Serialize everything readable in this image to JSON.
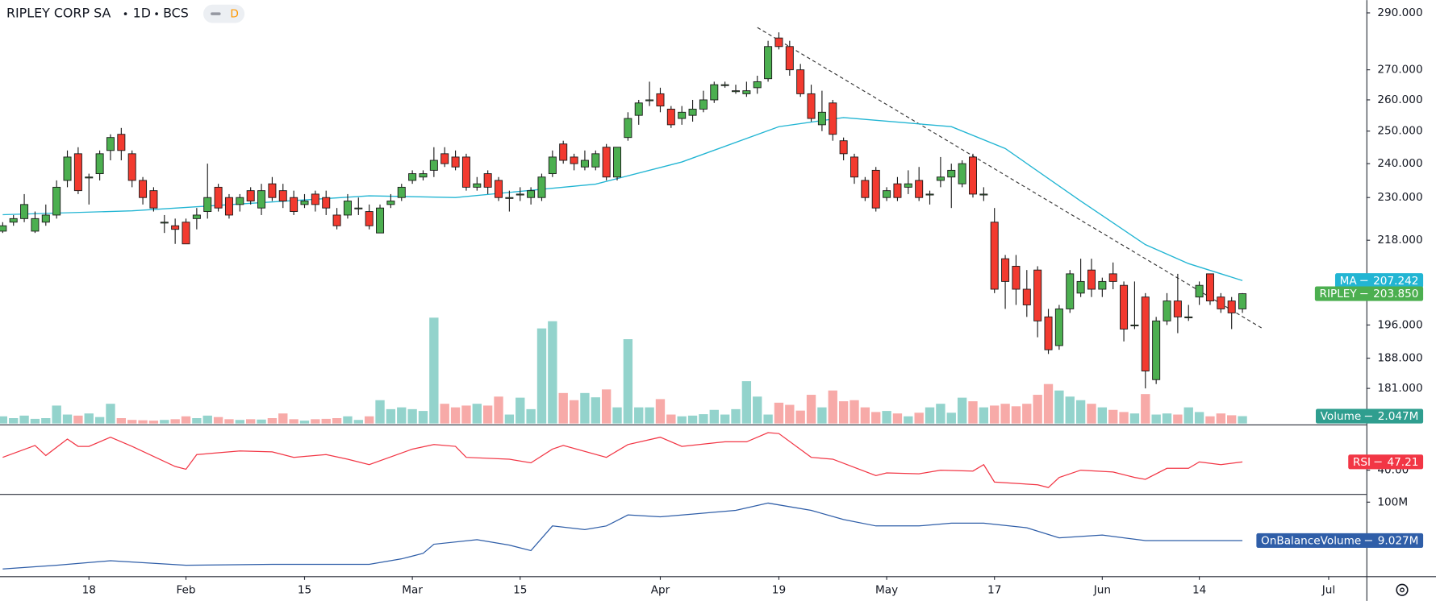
{
  "header": {
    "symbol": "RIPLEY CORP SA",
    "interval": "1D",
    "exchange": "BCS",
    "badge": "D"
  },
  "chart_data": [
    {
      "type": "candlestick",
      "name": "RIPLEY",
      "up_color": "#4caf50",
      "down_color": "#f23a2f",
      "log_scale": true,
      "xlim": [
        -0.25,
        126.5
      ],
      "ylim": [
        173.2,
        294.7
      ],
      "yticks": [
        {
          "value": 290,
          "label": "290.000"
        },
        {
          "value": 270,
          "label": "270.000"
        },
        {
          "value": 260,
          "label": "260.000"
        },
        {
          "value": 250,
          "label": "250.000"
        },
        {
          "value": 240,
          "label": "240.000"
        },
        {
          "value": 230,
          "label": "230.000"
        },
        {
          "value": 218,
          "label": "218.000"
        },
        {
          "value": 196,
          "label": "196.000"
        },
        {
          "value": 188,
          "label": "188.000"
        },
        {
          "value": 181,
          "label": "181.000"
        }
      ],
      "xticks": [
        {
          "value": 8,
          "label": "18"
        },
        {
          "value": 17,
          "label": "Feb"
        },
        {
          "value": 28,
          "label": "15"
        },
        {
          "value": 38,
          "label": "Mar"
        },
        {
          "value": 48,
          "label": "15"
        },
        {
          "value": 61,
          "label": "Apr"
        },
        {
          "value": 72,
          "label": "19"
        },
        {
          "value": 82,
          "label": "May"
        },
        {
          "value": 92,
          "label": "17"
        },
        {
          "value": 102,
          "label": "Jun"
        },
        {
          "value": 111,
          "label": "14"
        },
        {
          "value": 123,
          "label": "Jul"
        }
      ],
      "last_price": {
        "value": 203.85,
        "label": "203.850",
        "color": "#4caf50"
      },
      "ohlc": [
        [
          220.5,
          223,
          220,
          222
        ],
        [
          223,
          225,
          222,
          224
        ],
        [
          224,
          231,
          223,
          228
        ],
        [
          220.5,
          226,
          220,
          224
        ],
        [
          223,
          228,
          222,
          225
        ],
        [
          225,
          235,
          224,
          233
        ],
        [
          235,
          244,
          233,
          242
        ],
        [
          243,
          245,
          231,
          232
        ],
        [
          236,
          237,
          228,
          236
        ],
        [
          237,
          244,
          235,
          243
        ],
        [
          244,
          249,
          241,
          248
        ],
        [
          249,
          251,
          241,
          244
        ],
        [
          243,
          244,
          233,
          235
        ],
        [
          235,
          236,
          228,
          230
        ],
        [
          232,
          233,
          226,
          227
        ],
        [
          223,
          225,
          220,
          223
        ],
        [
          222,
          224,
          217,
          221
        ],
        [
          223,
          224,
          217,
          217
        ],
        [
          224,
          227,
          221,
          225
        ],
        [
          226,
          240,
          224,
          230
        ],
        [
          233,
          234,
          226,
          227
        ],
        [
          230,
          231,
          224,
          225
        ],
        [
          228,
          231,
          226,
          230
        ],
        [
          232,
          233,
          228,
          229
        ],
        [
          227,
          234,
          225,
          232
        ],
        [
          234,
          236,
          229,
          230
        ],
        [
          232,
          234,
          227,
          229
        ],
        [
          230,
          232,
          225,
          226
        ],
        [
          228,
          231,
          227,
          229
        ],
        [
          231,
          232,
          226,
          228
        ],
        [
          230,
          232,
          225,
          227
        ],
        [
          225,
          227,
          221,
          222
        ],
        [
          225,
          231,
          224,
          229
        ],
        [
          227,
          230,
          225,
          227
        ],
        [
          226,
          228,
          221,
          222
        ],
        [
          220,
          228,
          220,
          227
        ],
        [
          228,
          231,
          227,
          229
        ],
        [
          230,
          234,
          229,
          233
        ],
        [
          235,
          238,
          234,
          237
        ],
        [
          236,
          238,
          235,
          237
        ],
        [
          238,
          245,
          236,
          241
        ],
        [
          243,
          245,
          239,
          240
        ],
        [
          242,
          244,
          238,
          239
        ],
        [
          242,
          243,
          232,
          233
        ],
        [
          233,
          236,
          232,
          234
        ],
        [
          237,
          238,
          231,
          233
        ],
        [
          235,
          236,
          229,
          230
        ],
        [
          230,
          232,
          226,
          230
        ],
        [
          231,
          233,
          229,
          231
        ],
        [
          230,
          233,
          228,
          232
        ],
        [
          230,
          237,
          229,
          236
        ],
        [
          237,
          244,
          236,
          242
        ],
        [
          246,
          247,
          240,
          241
        ],
        [
          242,
          243,
          238,
          240
        ],
        [
          239,
          244,
          238,
          241
        ],
        [
          239,
          244,
          238,
          243
        ],
        [
          245,
          246,
          235,
          236
        ],
        [
          236,
          245,
          235,
          245
        ],
        [
          248,
          256,
          247,
          254
        ],
        [
          255,
          260,
          252,
          259
        ],
        [
          260,
          266,
          258,
          260
        ],
        [
          262,
          264,
          256,
          258
        ],
        [
          257,
          258,
          251,
          252
        ],
        [
          254,
          258,
          252,
          256
        ],
        [
          255,
          260,
          253,
          257
        ],
        [
          257,
          263,
          256,
          260
        ],
        [
          260,
          266,
          259,
          265
        ],
        [
          265,
          266,
          264,
          265
        ],
        [
          263,
          265,
          262,
          263
        ],
        [
          262,
          266,
          261,
          263
        ],
        [
          264,
          268,
          262,
          266
        ],
        [
          267,
          280,
          266,
          278
        ],
        [
          281,
          283,
          277,
          278
        ],
        [
          278,
          280,
          268,
          270
        ],
        [
          270,
          272,
          261,
          262
        ],
        [
          262,
          265,
          253,
          254
        ],
        [
          252,
          263,
          250,
          256
        ],
        [
          259,
          260,
          247,
          249
        ],
        [
          247,
          248,
          241,
          243
        ],
        [
          242,
          243,
          234,
          236
        ],
        [
          235,
          236,
          229,
          230
        ],
        [
          238,
          239,
          226,
          227
        ],
        [
          230,
          233,
          229,
          232
        ],
        [
          234,
          236,
          229,
          230
        ],
        [
          233,
          238,
          231,
          234
        ],
        [
          235,
          239,
          229,
          230
        ],
        [
          231,
          232,
          228,
          231
        ],
        [
          235,
          242,
          233,
          236
        ],
        [
          236,
          240,
          227,
          238
        ],
        [
          234,
          241,
          233,
          240
        ],
        [
          242,
          243,
          230,
          231
        ],
        [
          231,
          233,
          229,
          231
        ],
        [
          223,
          227,
          204,
          205
        ],
        [
          213,
          214,
          200,
          207
        ],
        [
          211,
          214,
          201,
          205
        ],
        [
          205,
          210,
          198,
          201
        ],
        [
          210,
          211,
          193,
          197
        ],
        [
          198,
          200,
          189,
          190
        ],
        [
          191,
          201,
          190,
          200
        ],
        [
          200,
          210,
          199,
          209
        ],
        [
          204,
          213,
          203,
          207
        ],
        [
          210,
          213,
          203,
          205
        ],
        [
          205,
          208,
          203,
          207
        ],
        [
          209,
          212,
          205,
          207
        ],
        [
          206,
          207,
          192,
          195
        ],
        [
          196,
          207,
          195,
          196
        ],
        [
          203,
          204,
          181,
          185
        ],
        [
          183,
          198,
          182,
          197
        ],
        [
          197,
          204,
          196,
          202
        ],
        [
          202,
          209,
          194,
          198
        ],
        [
          198,
          201,
          197,
          198
        ],
        [
          203,
          207,
          201,
          206
        ],
        [
          209,
          209,
          201,
          202
        ],
        [
          203,
          204,
          199,
          200
        ],
        [
          202,
          203,
          195,
          199
        ],
        [
          200,
          204,
          199,
          203.85
        ]
      ],
      "ma": {
        "name": "MA",
        "color": "#22b5d3",
        "x": [
          0,
          12,
          34,
          42,
          55,
          63,
          72,
          78,
          88,
          93,
          100,
          106,
          110,
          115
        ],
        "values": [
          225.1,
          226.2,
          230.5,
          230,
          233.9,
          240.5,
          251.4,
          254.3,
          251.4,
          244.6,
          229,
          216.8,
          211.7,
          207.242
        ]
      },
      "volume": {
        "name": "Volume",
        "ylim": [
          0,
          118
        ],
        "up_color": "#93d3cc",
        "down_color": "#f7aaa8",
        "badge_color": "#2f9e8f",
        "last_label": "2.047M",
        "values": [
          2,
          1.5,
          2.2,
          1.3,
          1.5,
          5,
          2.5,
          2.2,
          2.8,
          1.8,
          5.5,
          1.5,
          1,
          0.9,
          0.8,
          1,
          1.2,
          2,
          1.5,
          2.2,
          1.8,
          1.2,
          1,
          1.2,
          1.1,
          1.5,
          2.8,
          1.2,
          0.8,
          1.2,
          1.3,
          1.5,
          2,
          1,
          2,
          6.5,
          4,
          4.5,
          4,
          3.5,
          29.5,
          5.5,
          4.5,
          5,
          5.5,
          5,
          7.5,
          2.5,
          7.2,
          4,
          26.5,
          28.5,
          8.5,
          6.5,
          8.5,
          7.3,
          9.5,
          4.5,
          23.5,
          4.5,
          4.5,
          6.8,
          2.5,
          2,
          2.2,
          2.6,
          3.8,
          2.5,
          4,
          11.8,
          7.5,
          2.5,
          5.8,
          5.2,
          3.6,
          8,
          4.5,
          9.2,
          6.2,
          6.5,
          4.5,
          3.2,
          3.5,
          2.8,
          2,
          3,
          4.5,
          5.5,
          3,
          7.2,
          6.2,
          4.5,
          5,
          5.5,
          4.8,
          5.5,
          8,
          11,
          9.2,
          7.5,
          6.5,
          5.5,
          4.5,
          3.8,
          3.2,
          2.8,
          8.2,
          2.5,
          2.8,
          2.5,
          4.5,
          3.2,
          2,
          2.8,
          2.3,
          2.047
        ]
      }
    },
    {
      "type": "line",
      "name": "RSI",
      "color": "#f23645",
      "ylim": [
        19.2,
        78.4
      ],
      "yticks": [
        {
          "value": 40,
          "label": "40.00"
        }
      ],
      "x": [
        0,
        3,
        4,
        6,
        7,
        8,
        10,
        12,
        16,
        17,
        18,
        22,
        25,
        27,
        30,
        32,
        34,
        38,
        40,
        42,
        43,
        47,
        49,
        51,
        52,
        56,
        58,
        61,
        63,
        67,
        69,
        71,
        72,
        75,
        77,
        81,
        82,
        85,
        87,
        90,
        91,
        92,
        96,
        97,
        98,
        100,
        103,
        105,
        106,
        108,
        110,
        111,
        113,
        115
      ],
      "values": [
        51.2,
        61.6,
        52.8,
        67.2,
        60.8,
        60.8,
        68.8,
        60.8,
        43.2,
        40.8,
        53.6,
        56.8,
        56,
        51.2,
        53.6,
        49.6,
        44.8,
        58.4,
        62.4,
        60.8,
        51.2,
        49.6,
        46.4,
        58.4,
        61.6,
        51.2,
        62.4,
        68.8,
        60.8,
        64.8,
        64.8,
        72.8,
        72,
        51.2,
        49.6,
        35.2,
        37.6,
        36.8,
        40,
        39.2,
        44.8,
        29.6,
        27.2,
        24.8,
        33.6,
        40,
        38.4,
        33.6,
        32,
        41.6,
        41.6,
        47.2,
        44.8,
        47.21
      ]
    },
    {
      "type": "line",
      "name": "OnBalanceVolume",
      "color": "#2f5ea8",
      "ylim": [
        -75.5,
        117.3
      ],
      "last_label": "9.027M",
      "yticks": [
        {
          "value": 100,
          "label": "100M"
        }
      ],
      "x": [
        0,
        5,
        10,
        17,
        25,
        34,
        37,
        39,
        40,
        44,
        47,
        49,
        51,
        54,
        56,
        58,
        61,
        64,
        68,
        71,
        75,
        78,
        81,
        85,
        88,
        91,
        95,
        98,
        102,
        106,
        110,
        115
      ],
      "values": [
        -58.2,
        -49.5,
        -38.7,
        -49.5,
        -47.3,
        -47.3,
        -34.3,
        -21.3,
        0.3,
        11.2,
        -1.8,
        -14.8,
        43.7,
        35,
        43.7,
        69.7,
        65.3,
        71.8,
        80.5,
        97.8,
        80.5,
        58.8,
        43.7,
        43.7,
        50.2,
        50.2,
        39.3,
        15.5,
        22,
        9.027,
        9.027,
        9.027
      ]
    }
  ]
}
